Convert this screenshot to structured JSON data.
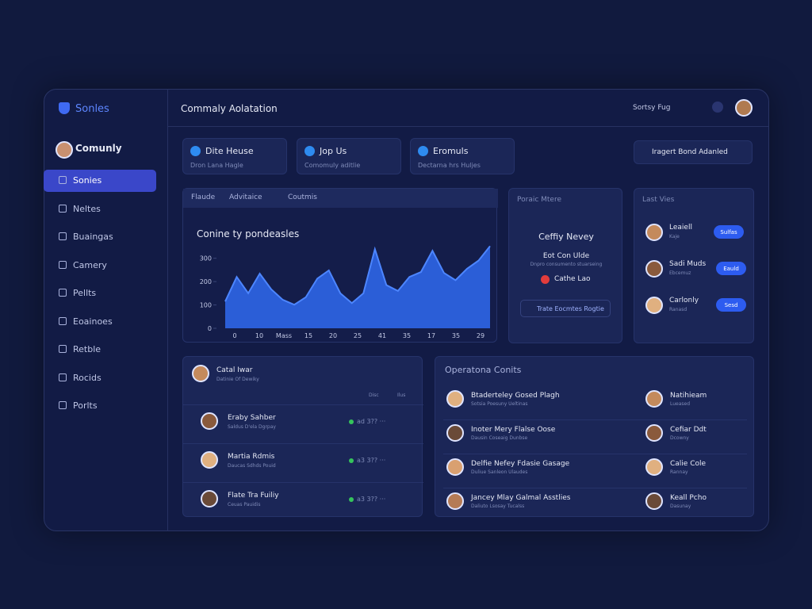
{
  "sidebar": {
    "brand": "Sonles",
    "user": "Comunly",
    "nav": [
      "Sonies",
      "Neltes",
      "Buaingas",
      "Camery",
      "Pellts",
      "Eoainoes",
      "Retble",
      "Rocids",
      "Porlts"
    ]
  },
  "header": {
    "title": "Commaly Aolatation",
    "user_menu": "Sortsy Fug"
  },
  "cards": [
    {
      "title": "Dite Heuse",
      "sub": "Dron Lana Hagle"
    },
    {
      "title": "Jop Us",
      "sub": "Comomuly aditlie"
    },
    {
      "title": "Eromuls",
      "sub": "Dectarna hrs Huljes"
    }
  ],
  "select": "Iragert Bond Adanled",
  "chart_tabs": [
    "Flaude",
    "Advitaice",
    "Coutmis"
  ],
  "chart_data": {
    "type": "area",
    "title": "Conine ty pondeasles",
    "color": "#2f6af0",
    "values": [
      115,
      220,
      150,
      234,
      167,
      122,
      101,
      133,
      213,
      248,
      150,
      108,
      150,
      339,
      185,
      160,
      220,
      241,
      332,
      237,
      206,
      255,
      290,
      352
    ],
    "x_labels": [
      "0",
      "10",
      "Mass",
      "15",
      "20",
      "25",
      "41",
      "35",
      "17",
      "35",
      "29"
    ],
    "ylim": [
      0,
      360
    ],
    "yticks": [
      0,
      100,
      200,
      300
    ]
  },
  "promo": {
    "header": "Poraic Mtere",
    "title": "Ceffiy Nevey",
    "line1": "Eot Con Ulde",
    "line2": "Dnpro consumento stuarseing",
    "badge": "Cathe Lao",
    "button": "Trate Eocmtes Rogtie"
  },
  "last_views": {
    "title": "Last Vies",
    "items": [
      {
        "name": "Leaiell",
        "sub": "Kaje",
        "button": "Sulfas"
      },
      {
        "name": "Sadi Muds",
        "sub": "Ebcemuz",
        "button": "Eauld"
      },
      {
        "name": "Carlonly",
        "sub": "Ranasd",
        "button": "Sesd"
      }
    ]
  },
  "contacts": {
    "name": "Catal Iwar",
    "sub": "Datinie Of Dewiky",
    "columns": [
      "Disc",
      "Ilus"
    ],
    "rows": [
      {
        "name": "Eraby Sahber",
        "sub": "Saldus D'ela Dgrpay",
        "status": "ad 3?? ···"
      },
      {
        "name": "Martia Rdmis",
        "sub": "Daucas Sdhds Pouid",
        "status": "a3 3?? ···"
      },
      {
        "name": "Flate Tra Fuiliy",
        "sub": "Ceuas Pauidis",
        "status": "a3 3?? ···"
      }
    ]
  },
  "operations": {
    "title": "Operatona Conits",
    "rows": [
      {
        "left": "Btaderteley Gosed Plagh",
        "left_sub": "Sotsia Poesuny Ueltinas",
        "right": "Natihieam",
        "right_sub": "Lueased"
      },
      {
        "left": "Inoter Mery Flalse Oose",
        "left_sub": "Dausin Coseaig Dunbse",
        "right": "Cefiar Ddt",
        "right_sub": "Dcowny"
      },
      {
        "left": "Delfie Nefey Fdasie Gasage",
        "left_sub": "Duliue Sanleon Ulaudes",
        "right": "Calie Cole",
        "right_sub": "Rannay"
      },
      {
        "left": "Jancey Mlay Galmal Asstlies",
        "left_sub": "Daliuto Lsosay Tucalss",
        "right": "Keall Pcho",
        "right_sub": "Dasunay"
      }
    ]
  }
}
